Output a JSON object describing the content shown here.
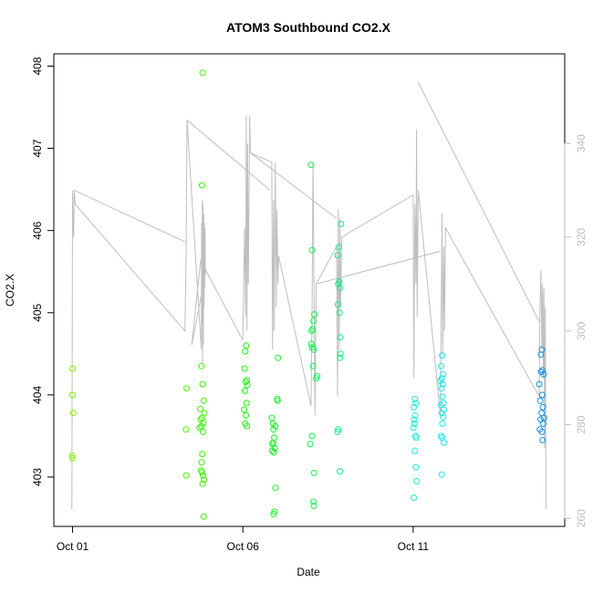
{
  "chart_data": {
    "type": "scatter",
    "title": "ATOM3 Southbound CO2.X",
    "xlabel": "Date",
    "ylabel": "CO2.X",
    "x_ticks": [
      "Oct 01",
      "Oct 06",
      "Oct 11"
    ],
    "x_tick_days": [
      1,
      6,
      11
    ],
    "xlim": [
      0.45,
      15.45
    ],
    "ylim": [
      402.4,
      408.15
    ],
    "y_ticks": [
      403,
      404,
      405,
      406,
      407,
      408
    ],
    "y2lim": [
      258.3,
      359.1
    ],
    "y2_ticks": [
      260,
      280,
      300,
      320,
      340
    ],
    "grid": false,
    "legend": "none",
    "colors": {
      "axis": "#000000",
      "right_axis": "#bebebe",
      "line": "#bebebe"
    },
    "series": [
      {
        "kind": "points",
        "color_scale": "hue gradient, green to blue",
        "points": [
          [
            1.0,
            404.32,
            "#7aef00"
          ],
          [
            1.0,
            404.0,
            "#7aef00"
          ],
          [
            1.02,
            403.78,
            "#7aef00"
          ],
          [
            0.99,
            403.26,
            "#7aef00"
          ],
          [
            0.99,
            403.23,
            "#7aef00"
          ],
          [
            4.35,
            404.08,
            "#54f000"
          ],
          [
            4.33,
            403.58,
            "#54f000"
          ],
          [
            4.34,
            403.02,
            "#54f000"
          ],
          [
            4.82,
            407.92,
            "#3cf200"
          ],
          [
            4.8,
            406.55,
            "#3cf200"
          ],
          [
            4.78,
            404.35,
            "#3cf200"
          ],
          [
            4.82,
            404.13,
            "#3cf200"
          ],
          [
            4.85,
            403.93,
            "#3cf200"
          ],
          [
            4.75,
            403.83,
            "#3cf200"
          ],
          [
            4.87,
            403.78,
            "#3cf200"
          ],
          [
            4.8,
            403.72,
            "#3cf200"
          ],
          [
            4.76,
            403.7,
            "#3cf200"
          ],
          [
            4.84,
            403.66,
            "#3cf200"
          ],
          [
            4.78,
            403.62,
            "#3cf200"
          ],
          [
            4.73,
            403.6,
            "#3cf200"
          ],
          [
            4.83,
            403.55,
            "#3cf200"
          ],
          [
            4.81,
            403.28,
            "#3cf200"
          ],
          [
            4.79,
            403.18,
            "#3cf200"
          ],
          [
            4.77,
            403.08,
            "#3cf200"
          ],
          [
            4.8,
            403.06,
            "#3cf200"
          ],
          [
            4.83,
            403.02,
            "#3cf200"
          ],
          [
            4.86,
            402.97,
            "#3cf200"
          ],
          [
            4.82,
            402.92,
            "#3cf200"
          ],
          [
            4.85,
            402.52,
            "#3cf200"
          ],
          [
            6.1,
            404.6,
            "#20f30d"
          ],
          [
            6.07,
            404.53,
            "#20f30d"
          ],
          [
            6.05,
            404.32,
            "#20f30d"
          ],
          [
            6.12,
            404.18,
            "#20f30d"
          ],
          [
            6.08,
            404.16,
            "#20f30d"
          ],
          [
            6.13,
            404.12,
            "#20f30d"
          ],
          [
            6.06,
            404.05,
            "#20f30d"
          ],
          [
            6.11,
            403.9,
            "#20f30d"
          ],
          [
            6.04,
            403.82,
            "#20f30d"
          ],
          [
            6.09,
            403.75,
            "#20f30d"
          ],
          [
            6.07,
            403.65,
            "#20f30d"
          ],
          [
            6.12,
            403.62,
            "#20f30d"
          ],
          [
            7.03,
            404.45,
            "#15f323"
          ],
          [
            7.01,
            403.95,
            "#15f323"
          ],
          [
            7.02,
            403.93,
            "#15f323"
          ],
          [
            6.85,
            403.72,
            "#15f323"
          ],
          [
            6.88,
            403.65,
            "#15f323"
          ],
          [
            6.95,
            403.62,
            "#15f323"
          ],
          [
            6.9,
            403.58,
            "#15f323"
          ],
          [
            6.92,
            403.48,
            "#15f323"
          ],
          [
            6.89,
            403.42,
            "#15f323"
          ],
          [
            6.87,
            403.4,
            "#15f323"
          ],
          [
            6.94,
            403.35,
            "#15f323"
          ],
          [
            6.86,
            403.32,
            "#15f323"
          ],
          [
            6.91,
            403.3,
            "#15f323"
          ],
          [
            6.96,
            402.87,
            "#15f323"
          ],
          [
            6.93,
            402.58,
            "#15f323"
          ],
          [
            6.9,
            402.55,
            "#15f323"
          ],
          [
            8.0,
            406.8,
            "#11f050"
          ],
          [
            8.03,
            405.76,
            "#11f050"
          ],
          [
            8.1,
            404.98,
            "#11f050"
          ],
          [
            8.07,
            404.9,
            "#11f050"
          ],
          [
            8.05,
            404.8,
            "#11f050"
          ],
          [
            8.02,
            404.78,
            "#11f050"
          ],
          [
            8.01,
            404.62,
            "#11f050"
          ],
          [
            8.04,
            404.58,
            "#11f050"
          ],
          [
            8.08,
            404.55,
            "#11f050"
          ],
          [
            8.06,
            404.35,
            "#11f050"
          ],
          [
            8.18,
            404.23,
            "#11f050"
          ],
          [
            8.15,
            404.2,
            "#11f050"
          ],
          [
            8.03,
            403.5,
            "#11f050"
          ],
          [
            7.98,
            403.4,
            "#11f050"
          ],
          [
            8.09,
            403.05,
            "#11f050"
          ],
          [
            8.07,
            402.7,
            "#11f050"
          ],
          [
            8.08,
            402.65,
            "#11f050"
          ],
          [
            8.88,
            406.08,
            "#11ee80"
          ],
          [
            8.82,
            405.8,
            "#11ee80"
          ],
          [
            8.78,
            405.7,
            "#11ee80"
          ],
          [
            8.83,
            405.38,
            "#11ee80"
          ],
          [
            8.8,
            405.35,
            "#11ee80"
          ],
          [
            8.85,
            405.3,
            "#11ee80"
          ],
          [
            8.79,
            405.1,
            "#11ee80"
          ],
          [
            8.84,
            405.0,
            "#11ee80"
          ],
          [
            8.86,
            404.7,
            "#11ee80"
          ],
          [
            8.87,
            404.5,
            "#11ee80"
          ],
          [
            8.85,
            404.45,
            "#11ee80"
          ],
          [
            8.8,
            403.58,
            "#11ee80"
          ],
          [
            8.78,
            403.55,
            "#11ee80"
          ],
          [
            8.85,
            403.07,
            "#11ee80"
          ],
          [
            11.05,
            403.95,
            "#13eeda"
          ],
          [
            11.08,
            403.9,
            "#13eeda"
          ],
          [
            11.02,
            403.85,
            "#13eeda"
          ],
          [
            11.06,
            403.75,
            "#13eeda"
          ],
          [
            11.03,
            403.7,
            "#13eeda"
          ],
          [
            11.04,
            403.65,
            "#13eeda"
          ],
          [
            11.01,
            403.6,
            "#13eeda"
          ],
          [
            11.07,
            403.5,
            "#13eeda"
          ],
          [
            11.09,
            403.48,
            "#13eeda"
          ],
          [
            11.05,
            403.32,
            "#13eeda"
          ],
          [
            11.08,
            403.12,
            "#13eeda"
          ],
          [
            11.1,
            402.95,
            "#13eeda"
          ],
          [
            11.02,
            402.75,
            "#13eeda"
          ],
          [
            11.85,
            404.48,
            "#18e6ef"
          ],
          [
            11.82,
            404.35,
            "#18e6ef"
          ],
          [
            11.88,
            404.25,
            "#18e6ef"
          ],
          [
            11.84,
            404.2,
            "#18e6ef"
          ],
          [
            11.8,
            404.17,
            "#18e6ef"
          ],
          [
            11.87,
            404.13,
            "#18e6ef"
          ],
          [
            11.83,
            404.08,
            "#18e6ef"
          ],
          [
            11.86,
            403.98,
            "#18e6ef"
          ],
          [
            11.89,
            403.9,
            "#18e6ef"
          ],
          [
            11.81,
            403.88,
            "#18e6ef"
          ],
          [
            11.9,
            403.82,
            "#18e6ef"
          ],
          [
            11.84,
            403.78,
            "#18e6ef"
          ],
          [
            11.88,
            403.73,
            "#18e6ef"
          ],
          [
            11.86,
            403.65,
            "#18e6ef"
          ],
          [
            11.82,
            403.5,
            "#18e6ef"
          ],
          [
            11.85,
            403.48,
            "#18e6ef"
          ],
          [
            11.9,
            403.42,
            "#18e6ef"
          ],
          [
            11.84,
            403.03,
            "#18e6ef"
          ],
          [
            14.78,
            404.55,
            "#1290e6"
          ],
          [
            14.75,
            404.49,
            "#1290e6"
          ],
          [
            14.8,
            404.3,
            "#1290e6"
          ],
          [
            14.76,
            404.28,
            "#1290e6"
          ],
          [
            14.83,
            404.25,
            "#1290e6"
          ],
          [
            14.7,
            404.13,
            "#1290e6"
          ],
          [
            14.79,
            404.0,
            "#1290e6"
          ],
          [
            14.73,
            403.93,
            "#1290e6"
          ],
          [
            14.81,
            403.85,
            "#1290e6"
          ],
          [
            14.77,
            403.78,
            "#1290e6"
          ],
          [
            14.84,
            403.72,
            "#1290e6"
          ],
          [
            14.74,
            403.7,
            "#1290e6"
          ],
          [
            14.82,
            403.65,
            "#1290e6"
          ],
          [
            14.72,
            403.58,
            "#1290e6"
          ],
          [
            14.78,
            403.55,
            "#1290e6"
          ],
          [
            14.8,
            403.45,
            "#1290e6"
          ]
        ]
      },
      {
        "kind": "line",
        "axis": "right",
        "color": "#bebebe",
        "points": [
          [
            0.98,
            262
          ],
          [
            1.0,
            330
          ],
          [
            1.02,
            322
          ],
          [
            1.03,
            320
          ],
          [
            1.05,
            330
          ],
          [
            1.08,
            327
          ],
          [
            4.3,
            300
          ],
          [
            4.33,
            314
          ],
          [
            4.36,
            345
          ],
          [
            4.78,
            296
          ],
          [
            4.79,
            323
          ],
          [
            4.8,
            301
          ],
          [
            4.81,
            328
          ],
          [
            4.82,
            293
          ],
          [
            4.83,
            327
          ],
          [
            4.84,
            297
          ],
          [
            4.85,
            325
          ],
          [
            4.86,
            305
          ],
          [
            4.87,
            323
          ],
          [
            4.88,
            309
          ],
          [
            4.89,
            322
          ],
          [
            4.9,
            312
          ],
          [
            4.5,
            297
          ],
          [
            4.76,
            315
          ],
          [
            6.0,
            298
          ],
          [
            6.05,
            322
          ],
          [
            6.08,
            303
          ],
          [
            6.1,
            346
          ],
          [
            6.12,
            300
          ],
          [
            6.14,
            340
          ],
          [
            6.16,
            310
          ],
          [
            6.2,
            346
          ],
          [
            6.22,
            338
          ],
          [
            6.85,
            336
          ],
          [
            6.87,
            296
          ],
          [
            6.9,
            328
          ],
          [
            6.92,
            300
          ],
          [
            6.95,
            336
          ],
          [
            6.98,
            305
          ],
          [
            7.0,
            326
          ],
          [
            7.03,
            310
          ],
          [
            7.05,
            316
          ],
          [
            8.0,
            284
          ],
          [
            8.03,
            302
          ],
          [
            8.06,
            336
          ],
          [
            8.1,
            300
          ],
          [
            8.12,
            282
          ],
          [
            8.15,
            310
          ],
          [
            8.75,
            318
          ],
          [
            8.78,
            286
          ],
          [
            8.8,
            326
          ],
          [
            8.83,
            296
          ],
          [
            8.85,
            324
          ],
          [
            8.87,
            305
          ],
          [
            8.9,
            320
          ],
          [
            11.0,
            329
          ],
          [
            11.02,
            290
          ],
          [
            11.05,
            327
          ],
          [
            11.08,
            310
          ],
          [
            11.1,
            343
          ],
          [
            11.12,
            303
          ],
          [
            11.15,
            330
          ],
          [
            11.8,
            282
          ],
          [
            11.82,
            303
          ],
          [
            11.85,
            325
          ],
          [
            11.87,
            295
          ],
          [
            11.9,
            318
          ],
          [
            11.92,
            300
          ],
          [
            11.95,
            322
          ],
          [
            14.7,
            286
          ],
          [
            14.72,
            303
          ],
          [
            14.75,
            313
          ],
          [
            14.78,
            296
          ],
          [
            14.8,
            310
          ],
          [
            14.82,
            290
          ],
          [
            14.84,
            309
          ],
          [
            14.86,
            275
          ],
          [
            14.88,
            305
          ],
          [
            14.9,
            262
          ]
        ],
        "connectors": [
          [
            [
              1.05,
              330
            ],
            [
              4.3,
              319
            ]
          ],
          [
            [
              4.36,
              345
            ],
            [
              6.8,
              330
            ]
          ],
          [
            [
              6.22,
              338
            ],
            [
              8.75,
              324
            ]
          ],
          [
            [
              8.15,
              310
            ],
            [
              11.8,
              317
            ]
          ],
          [
            [
              11.15,
              353
            ],
            [
              14.7,
              302
            ]
          ]
        ]
      }
    ]
  }
}
